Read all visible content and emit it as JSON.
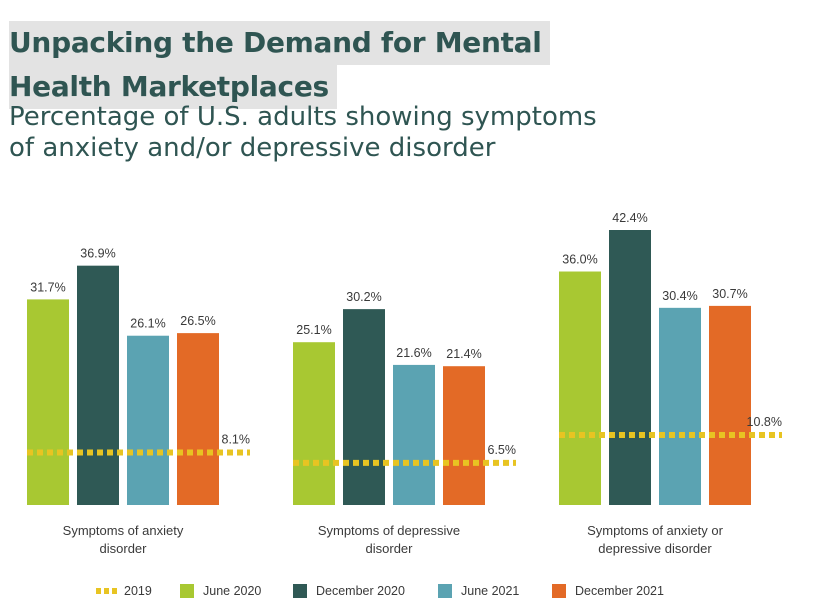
{
  "chart_data": {
    "type": "bar",
    "title": "Unpacking the Demand for Mental Health Marketplaces",
    "title_lines": [
      "Unpacking the Demand for Mental",
      "Health Marketplaces"
    ],
    "subtitle_lines": [
      "Percentage of U.S. adults showing symptoms",
      "of anxiety and/or depressive disorder"
    ],
    "categories": [
      {
        "lines": [
          "Symptoms of anxiety",
          "disorder"
        ]
      },
      {
        "lines": [
          "Symptoms of depressive",
          "disorder"
        ]
      },
      {
        "lines": [
          "Symptoms of anxiety or",
          "depressive disorder"
        ]
      }
    ],
    "series": [
      {
        "name": "June 2020",
        "color": "#a8c832",
        "values": [
          31.7,
          25.1,
          36.0
        ],
        "labels": [
          "31.7%",
          "25.1%",
          "36.0%"
        ]
      },
      {
        "name": "December 2020",
        "color": "#2f5955",
        "values": [
          36.9,
          30.2,
          42.4
        ],
        "labels": [
          "36.9%",
          "30.2%",
          "42.4%"
        ]
      },
      {
        "name": "June 2021",
        "color": "#5ba3b2",
        "values": [
          26.1,
          21.6,
          30.4
        ],
        "labels": [
          "26.1%",
          "21.6%",
          "30.4%"
        ]
      },
      {
        "name": "December 2021",
        "color": "#e36a26",
        "values": [
          26.5,
          21.4,
          30.7
        ],
        "labels": [
          "26.5%",
          "21.4%",
          "30.7%"
        ]
      }
    ],
    "baseline": {
      "name": "2019",
      "color": "#e8c422",
      "values": [
        8.1,
        6.5,
        10.8
      ],
      "labels": [
        "8.1%",
        "6.5%",
        "10.8%"
      ],
      "style": "dotted-line"
    },
    "ylim": [
      0,
      42.4
    ],
    "grid": false,
    "legend": "bottom"
  }
}
